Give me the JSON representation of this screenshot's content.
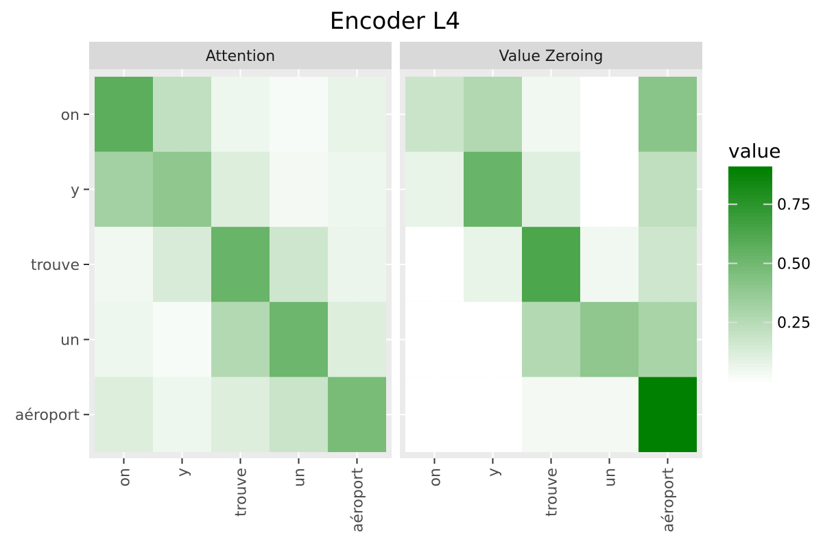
{
  "chart_data": {
    "type": "heatmap",
    "title": "Encoder L4",
    "tokens": [
      "on",
      "y",
      "trouve",
      "un",
      "aéroport"
    ],
    "panels": [
      {
        "label": "Attention",
        "values": [
          [
            0.58,
            0.22,
            0.06,
            0.03,
            0.08
          ],
          [
            0.33,
            0.4,
            0.12,
            0.04,
            0.06
          ],
          [
            0.05,
            0.14,
            0.54,
            0.18,
            0.07
          ],
          [
            0.06,
            0.03,
            0.27,
            0.52,
            0.12
          ],
          [
            0.12,
            0.06,
            0.12,
            0.19,
            0.48
          ]
        ]
      },
      {
        "label": "Value Zeroing",
        "values": [
          [
            0.19,
            0.28,
            0.05,
            0.0,
            0.42
          ],
          [
            0.08,
            0.54,
            0.11,
            0.0,
            0.23
          ],
          [
            0.0,
            0.08,
            0.64,
            0.05,
            0.18
          ],
          [
            0.0,
            0.0,
            0.27,
            0.4,
            0.31
          ],
          [
            0.0,
            0.0,
            0.04,
            0.04,
            0.91
          ]
        ]
      }
    ],
    "legend": {
      "title": "value",
      "ticks": [
        0.25,
        0.5,
        0.75
      ],
      "tick_labels": [
        "0.25",
        "0.50",
        "0.75"
      ],
      "range": [
        0,
        0.91
      ]
    },
    "colors": {
      "low": "#ffffff",
      "high": "#008000",
      "panel_bg": "#ebebeb",
      "strip_bg": "#d9d9d9",
      "axis_text": "#4d4d4d"
    }
  }
}
